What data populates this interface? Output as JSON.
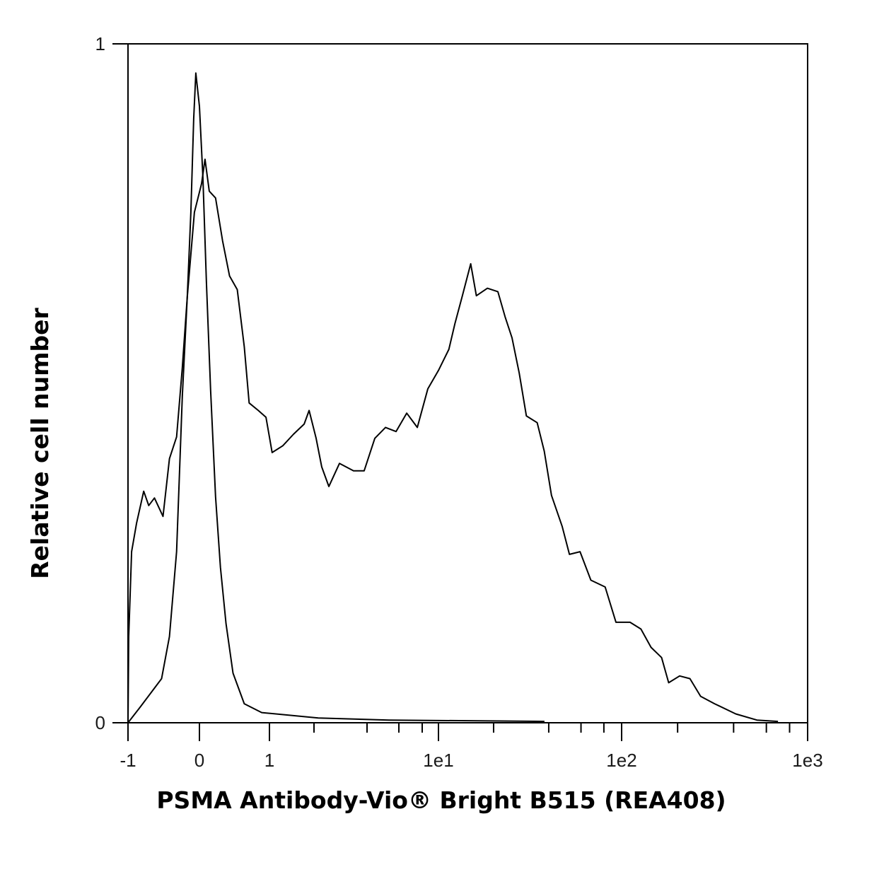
{
  "chart_data": {
    "type": "line",
    "title": "",
    "xlabel": "PSMA Antibody-Vio® Bright B515 (REA408)",
    "ylabel": "Relative cell number",
    "xscale": "biexponential",
    "xlim": [
      -1,
      1000
    ],
    "ylim": [
      0,
      1
    ],
    "grid": false,
    "x_ticks": [
      {
        "value": -1,
        "label": "-1"
      },
      {
        "value": 0,
        "label": "0"
      },
      {
        "value": 1,
        "label": "1"
      },
      {
        "value": 10,
        "label": "1e1"
      },
      {
        "value": 100,
        "label": "1e2"
      },
      {
        "value": 1000,
        "label": "1e3"
      }
    ],
    "x_minor_ticks": [
      2,
      4,
      6,
      8,
      20,
      40,
      60,
      80,
      200,
      400,
      600,
      800
    ],
    "y_ticks": [
      {
        "value": 0,
        "label": "0"
      },
      {
        "value": 1,
        "label": "1"
      }
    ],
    "line_color": "#000000",
    "series": [
      {
        "x": [
          -1.0,
          -0.83,
          -0.53,
          -0.42,
          -0.32,
          -0.24,
          -0.17,
          -0.12,
          -0.08,
          -0.05,
          0,
          0.05,
          0.1,
          0.16,
          0.23,
          0.3,
          0.38,
          0.48,
          0.64,
          0.89,
          2.16,
          5.38,
          37.9
        ],
        "y": [
          0,
          0.023,
          0.065,
          0.127,
          0.252,
          0.481,
          0.627,
          0.752,
          0.89,
          0.957,
          0.908,
          0.804,
          0.648,
          0.49,
          0.333,
          0.229,
          0.146,
          0.073,
          0.028,
          0.015,
          0.007,
          0.004,
          0.002
        ]
      },
      {
        "x": [
          -1.0,
          -0.99,
          -0.95,
          -0.88,
          -0.78,
          -0.71,
          -0.63,
          -0.51,
          -0.42,
          -0.32,
          -0.24,
          -0.17,
          -0.07,
          0.03,
          0.08,
          0.14,
          0.23,
          0.33,
          0.43,
          0.54,
          0.64,
          0.71,
          0.84,
          0.95,
          1.06,
          1.3,
          1.54,
          1.78,
          1.89,
          2.08,
          2.29,
          2.56,
          2.96,
          3.49,
          3.89,
          4.49,
          5.16,
          5.82,
          6.67,
          7.58,
          8.7,
          10.0,
          11.4,
          12.3,
          13.5,
          15.0,
          16.1,
          18.5,
          21.1,
          23.1,
          25.2,
          27.6,
          30.2,
          34.6,
          37.8,
          41.4,
          47.4,
          51.9,
          59.3,
          67.9,
          81.3,
          93.1,
          111,
          127,
          144,
          164,
          179,
          205,
          233,
          266,
          316,
          411,
          534,
          693
        ],
        "y": [
          0,
          0.127,
          0.252,
          0.294,
          0.341,
          0.32,
          0.331,
          0.304,
          0.389,
          0.421,
          0.523,
          0.627,
          0.752,
          0.794,
          0.83,
          0.783,
          0.773,
          0.71,
          0.658,
          0.638,
          0.554,
          0.471,
          0.46,
          0.45,
          0.398,
          0.408,
          0.425,
          0.44,
          0.46,
          0.419,
          0.377,
          0.348,
          0.382,
          0.371,
          0.371,
          0.419,
          0.435,
          0.429,
          0.456,
          0.435,
          0.492,
          0.519,
          0.55,
          0.588,
          0.629,
          0.676,
          0.629,
          0.64,
          0.635,
          0.598,
          0.567,
          0.515,
          0.452,
          0.442,
          0.4,
          0.335,
          0.289,
          0.248,
          0.252,
          0.21,
          0.2,
          0.148,
          0.148,
          0.138,
          0.111,
          0.096,
          0.059,
          0.069,
          0.065,
          0.039,
          0.028,
          0.013,
          0.004,
          0.002
        ]
      }
    ]
  }
}
